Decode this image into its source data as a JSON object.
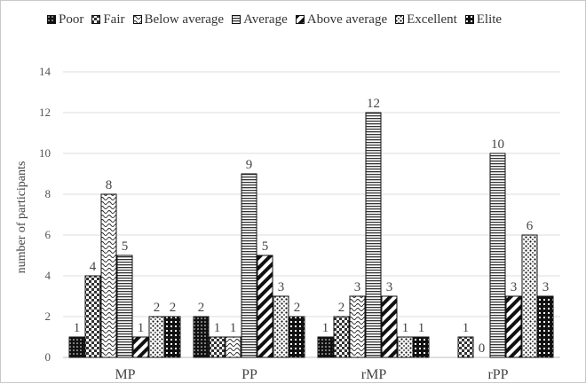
{
  "chart_data": {
    "type": "bar",
    "title": "",
    "xlabel": "",
    "ylabel": "number of participants",
    "ylim": [
      0,
      14
    ],
    "yticks": [
      0,
      2,
      4,
      6,
      8,
      10,
      12,
      14
    ],
    "grid": true,
    "legend_position": "top",
    "categories": [
      "MP",
      "PP",
      "rMP",
      "rPP"
    ],
    "series": [
      {
        "name": "Poor",
        "pattern": "dots-black",
        "values": [
          1,
          2,
          1,
          0
        ]
      },
      {
        "name": "Fair",
        "pattern": "checker",
        "values": [
          4,
          1,
          2,
          1
        ]
      },
      {
        "name": "Below average",
        "pattern": "wave",
        "values": [
          8,
          1,
          3,
          0
        ]
      },
      {
        "name": "Average",
        "pattern": "horizontal",
        "values": [
          5,
          9,
          12,
          10
        ]
      },
      {
        "name": "Above average",
        "pattern": "diagonal",
        "values": [
          1,
          5,
          3,
          3
        ]
      },
      {
        "name": "Excellent",
        "pattern": "dots-sparse",
        "values": [
          2,
          3,
          1,
          6
        ]
      },
      {
        "name": "Elite",
        "pattern": "grid-black",
        "values": [
          2,
          2,
          1,
          3
        ]
      }
    ],
    "data_labels_shown": [
      [
        true,
        true,
        true,
        false
      ],
      [
        true,
        true,
        true,
        true
      ],
      [
        true,
        true,
        true,
        true
      ],
      [
        true,
        true,
        true,
        true
      ],
      [
        true,
        true,
        true,
        true
      ],
      [
        true,
        true,
        true,
        true
      ],
      [
        true,
        true,
        true,
        true
      ]
    ]
  }
}
